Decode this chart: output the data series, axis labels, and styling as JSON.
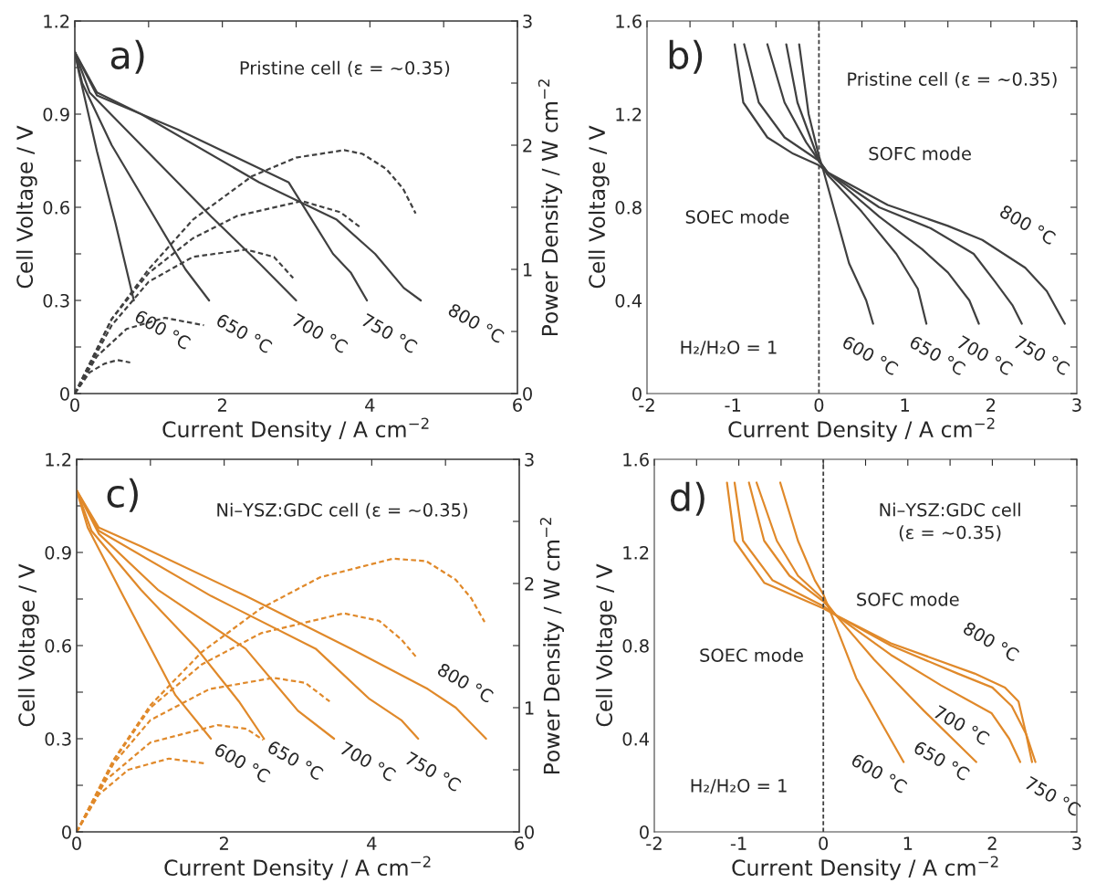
{
  "chart_data": [
    {
      "type": "line",
      "title": "a)",
      "subtitle": "Pristine cell (ε = ~0.35)",
      "xlabel": "Current Density / A cm$^{−2}$",
      "ylabel": "Cell Voltage / V",
      "y2label": "Power Density / W cm$^{−2}$",
      "xlim": [
        0,
        6
      ],
      "xticks": [
        0,
        {
          "value": 1,
          "label": null
        },
        2,
        {
          "value": 3,
          "label": null
        },
        4,
        {
          "value": 5,
          "label": null
        },
        6
      ],
      "ylim": [
        0,
        1.2
      ],
      "yticks": [
        0,
        {
          "value": 0.15,
          "label": null
        },
        0.3,
        {
          "value": 0.45,
          "label": null
        },
        0.6,
        {
          "value": 0.75,
          "label": null
        },
        0.9,
        {
          "value": 1.05,
          "label": null
        },
        1.2
      ],
      "y2lim": [
        0,
        3
      ],
      "y2ticks": [
        0,
        {
          "value": 0.5,
          "label": null
        },
        1,
        {
          "value": 1.5,
          "label": null
        },
        2,
        {
          "value": 2.5,
          "label": null
        },
        3
      ],
      "series": [
        {
          "name": "600 °C",
          "color": "#404040",
          "line_style": "solid",
          "x": [
            0,
            0.05,
            0.3,
            0.55,
            0.8
          ],
          "values": [
            1.1,
            1.04,
            0.78,
            0.55,
            0.3
          ]
        },
        {
          "name": "650 °C",
          "color": "#404040",
          "line_style": "solid",
          "x": [
            0,
            0.1,
            0.5,
            1.0,
            1.5,
            1.82
          ],
          "values": [
            1.1,
            1.0,
            0.8,
            0.6,
            0.4,
            0.3
          ]
        },
        {
          "name": "700 °C",
          "color": "#404040",
          "line_style": "solid",
          "x": [
            0,
            0.2,
            0.9,
            1.85,
            2.5,
            3.0
          ],
          "values": [
            1.1,
            0.97,
            0.8,
            0.57,
            0.42,
            0.3
          ]
        },
        {
          "name": "750 °C",
          "color": "#404040",
          "line_style": "solid",
          "x": [
            0,
            0.3,
            1.4,
            2.9,
            3.5,
            3.74,
            3.96
          ],
          "values": [
            1.1,
            0.96,
            0.85,
            0.68,
            0.45,
            0.39,
            0.3
          ]
        },
        {
          "name": "800 °C",
          "color": "#404040",
          "line_style": "solid",
          "x": [
            0,
            0.3,
            0.9,
            2.5,
            3.55,
            4.07,
            4.46,
            4.69
          ],
          "values": [
            1.1,
            0.97,
            0.9,
            0.68,
            0.56,
            0.45,
            0.34,
            0.3
          ]
        },
        {
          "color": "#404040",
          "line_style": "dashed",
          "axis": "y2",
          "x": [
            0,
            0.2,
            0.4,
            0.58,
            0.75
          ],
          "values": [
            0,
            0.17,
            0.24,
            0.27,
            0.25
          ]
        },
        {
          "color": "#404040",
          "line_style": "dashed",
          "axis": "y2",
          "x": [
            0,
            0.3,
            0.7,
            1.22,
            1.75
          ],
          "values": [
            0,
            0.3,
            0.52,
            0.61,
            0.55
          ]
        },
        {
          "color": "#404040",
          "line_style": "dashed",
          "axis": "y2",
          "x": [
            0,
            0.5,
            1.0,
            1.6,
            2.32,
            2.7,
            2.96
          ],
          "values": [
            0,
            0.55,
            0.9,
            1.1,
            1.16,
            1.1,
            0.93
          ]
        },
        {
          "color": "#404040",
          "line_style": "dashed",
          "axis": "y2",
          "x": [
            0,
            0.5,
            1.0,
            1.6,
            2.2,
            3.08,
            3.6,
            3.89
          ],
          "values": [
            0,
            0.6,
            0.97,
            1.25,
            1.43,
            1.55,
            1.46,
            1.33
          ]
        },
        {
          "color": "#404040",
          "line_style": "dashed",
          "axis": "y2",
          "x": [
            0,
            0.5,
            1.0,
            1.6,
            2.4,
            3.0,
            3.65,
            3.9,
            4.22,
            4.45,
            4.62
          ],
          "values": [
            0,
            0.6,
            1.0,
            1.4,
            1.75,
            1.9,
            1.96,
            1.93,
            1.81,
            1.65,
            1.45
          ]
        }
      ],
      "legend": false
    },
    {
      "type": "line",
      "title": "b)",
      "subtitle": "Pristine cell (ε = ~0.35)",
      "xlabel": "Current Density / A cm$^{−2}$",
      "ylabel": "Cell Voltage / V",
      "xlim": [
        -2,
        3
      ],
      "xticks": [
        -2,
        {
          "value": -1.5,
          "label": null
        },
        -1,
        {
          "value": -0.5,
          "label": null
        },
        0,
        {
          "value": 0.5,
          "label": null
        },
        1,
        {
          "value": 1.5,
          "label": null
        },
        2,
        {
          "value": 2.5,
          "label": null
        },
        3
      ],
      "ylim": [
        0,
        1.6
      ],
      "yticks": [
        0,
        {
          "value": 0.2,
          "label": null
        },
        0.4,
        {
          "value": 0.6,
          "label": null
        },
        0.8,
        {
          "value": 1.0,
          "label": null
        },
        1.2,
        {
          "value": 1.4,
          "label": null
        },
        1.6
      ],
      "ref_lines": [
        {
          "axis": "x",
          "value": 0,
          "color": "#404040",
          "line_style": "dashed"
        }
      ],
      "series": [
        {
          "name": "600 °C",
          "color": "#404040",
          "line_style": "solid",
          "x": [
            -0.23,
            -0.12,
            0,
            0.05,
            0.35,
            0.55,
            0.63
          ],
          "values": [
            1.5,
            1.2,
            1.02,
            0.96,
            0.56,
            0.4,
            0.3
          ]
        },
        {
          "name": "650 °C",
          "color": "#404040",
          "line_style": "solid",
          "x": [
            -0.38,
            -0.25,
            0,
            0.1,
            0.5,
            0.9,
            1.15,
            1.25
          ],
          "values": [
            1.5,
            1.25,
            1.0,
            0.94,
            0.78,
            0.6,
            0.45,
            0.3
          ]
        },
        {
          "name": "700 °C",
          "color": "#404040",
          "line_style": "solid",
          "x": [
            -0.6,
            -0.4,
            -0.15,
            0,
            0.1,
            0.7,
            1.2,
            1.5,
            1.75,
            1.86
          ],
          "values": [
            1.5,
            1.25,
            1.08,
            1.0,
            0.95,
            0.76,
            0.62,
            0.52,
            0.4,
            0.3
          ]
        },
        {
          "name": "750 °C",
          "color": "#404040",
          "line_style": "solid",
          "x": [
            -0.87,
            -0.7,
            -0.4,
            0,
            0.1,
            0.7,
            1.3,
            1.8,
            2.05,
            2.25,
            2.36
          ],
          "values": [
            1.5,
            1.25,
            1.1,
            1.0,
            0.95,
            0.8,
            0.71,
            0.6,
            0.48,
            0.38,
            0.3
          ]
        },
        {
          "name": "800 °C",
          "color": "#404040",
          "line_style": "solid",
          "x": [
            -0.98,
            -0.88,
            -0.6,
            -0.3,
            0,
            0.1,
            0.8,
            1.5,
            1.9,
            2.4,
            2.65,
            2.86
          ],
          "values": [
            1.5,
            1.25,
            1.1,
            1.03,
            0.98,
            0.95,
            0.81,
            0.72,
            0.66,
            0.54,
            0.44,
            0.3
          ]
        }
      ],
      "annotations": [
        "SOFC mode",
        "SOEC mode",
        "H₂/H₂O = 1"
      ]
    },
    {
      "type": "line",
      "title": "c)",
      "subtitle": "Ni–YSZ:GDC cell (ε = ~0.35)",
      "xlabel": "Current Density / A cm$^{−2}$",
      "ylabel": "Cell Voltage / V",
      "y2label": "Power Density / W cm$^{−2}$",
      "xlim": [
        0,
        6
      ],
      "xticks": [
        0,
        {
          "value": 1,
          "label": null
        },
        2,
        {
          "value": 3,
          "label": null
        },
        4,
        {
          "value": 5,
          "label": null
        },
        6
      ],
      "ylim": [
        0,
        1.2
      ],
      "yticks": [
        0,
        {
          "value": 0.15,
          "label": null
        },
        0.3,
        {
          "value": 0.45,
          "label": null
        },
        0.6,
        {
          "value": 0.75,
          "label": null
        },
        0.9,
        {
          "value": 1.05,
          "label": null
        },
        1.2
      ],
      "y2lim": [
        0,
        3
      ],
      "y2ticks": [
        0,
        {
          "value": 0.5,
          "label": null
        },
        1,
        {
          "value": 1.5,
          "label": null
        },
        2,
        {
          "value": 2.5,
          "label": null
        },
        3
      ],
      "series": [
        {
          "name": "600 °C",
          "color": "#e0892a",
          "line_style": "solid",
          "x": [
            0,
            0.15,
            0.63,
            1.34,
            1.82
          ],
          "values": [
            1.1,
            0.98,
            0.76,
            0.44,
            0.3
          ]
        },
        {
          "name": "650 °C",
          "color": "#e0892a",
          "line_style": "solid",
          "x": [
            0,
            0.2,
            0.87,
            1.63,
            2.2,
            2.54
          ],
          "values": [
            1.1,
            0.97,
            0.78,
            0.59,
            0.42,
            0.3
          ]
        },
        {
          "name": "700 °C",
          "color": "#e0892a",
          "line_style": "solid",
          "x": [
            0,
            0.3,
            1.1,
            2.29,
            3.0,
            3.49
          ],
          "values": [
            1.1,
            0.96,
            0.78,
            0.59,
            0.39,
            0.3
          ]
        },
        {
          "name": "750 °C",
          "color": "#e0892a",
          "line_style": "solid",
          "x": [
            0,
            0.3,
            1.82,
            3.24,
            3.96,
            4.4,
            4.63
          ],
          "values": [
            1.1,
            0.97,
            0.76,
            0.59,
            0.43,
            0.36,
            0.3
          ]
        },
        {
          "name": "800 °C",
          "color": "#e0892a",
          "line_style": "solid",
          "x": [
            0,
            0.3,
            0.87,
            2.29,
            3.72,
            4.76,
            5.14,
            5.55
          ],
          "values": [
            1.1,
            0.98,
            0.92,
            0.76,
            0.59,
            0.46,
            0.4,
            0.3
          ]
        },
        {
          "color": "#e0892a",
          "line_style": "dashed",
          "axis": "y2",
          "x": [
            0,
            0.3,
            0.7,
            1.25,
            1.75
          ],
          "values": [
            0,
            0.3,
            0.5,
            0.59,
            0.55
          ]
        },
        {
          "color": "#e0892a",
          "line_style": "dashed",
          "axis": "y2",
          "x": [
            0,
            0.4,
            1.0,
            1.91,
            2.3,
            2.53
          ],
          "values": [
            0,
            0.42,
            0.72,
            0.86,
            0.83,
            0.74
          ]
        },
        {
          "color": "#e0892a",
          "line_style": "dashed",
          "axis": "y2",
          "x": [
            0,
            0.5,
            1.0,
            1.8,
            2.67,
            3.1,
            3.43
          ],
          "values": [
            0,
            0.55,
            0.9,
            1.15,
            1.24,
            1.2,
            1.05
          ]
        },
        {
          "color": "#e0892a",
          "line_style": "dashed",
          "axis": "y2",
          "x": [
            0,
            0.5,
            1.0,
            1.7,
            2.5,
            3.62,
            4.1,
            4.4,
            4.6
          ],
          "values": [
            0,
            0.57,
            1.0,
            1.35,
            1.6,
            1.76,
            1.7,
            1.55,
            1.41
          ]
        },
        {
          "color": "#e0892a",
          "line_style": "dashed",
          "axis": "y2",
          "x": [
            0,
            0.5,
            1.0,
            1.7,
            2.5,
            3.3,
            4.29,
            4.74,
            5.14,
            5.35,
            5.53
          ],
          "values": [
            0,
            0.58,
            1.02,
            1.45,
            1.8,
            2.05,
            2.2,
            2.18,
            2.03,
            1.88,
            1.69
          ]
        }
      ],
      "legend": false
    },
    {
      "type": "line",
      "title": "d)",
      "subtitle": "Ni–YSZ:GDC cell\n(ε = ~0.35)",
      "xlabel": "Current Density / A cm$^{−2}$",
      "ylabel": "Cell Voltage / V",
      "xlim": [
        -2,
        3
      ],
      "xticks": [
        -2,
        {
          "value": -1.5,
          "label": null
        },
        -1,
        {
          "value": -0.5,
          "label": null
        },
        0,
        {
          "value": 0.5,
          "label": null
        },
        1,
        {
          "value": 1.5,
          "label": null
        },
        2,
        {
          "value": 2.5,
          "label": null
        },
        3
      ],
      "ylim": [
        0,
        1.6
      ],
      "yticks": [
        0,
        {
          "value": 0.2,
          "label": null
        },
        0.4,
        {
          "value": 0.6,
          "label": null
        },
        0.8,
        {
          "value": 1.0,
          "label": null
        },
        1.2,
        {
          "value": 1.4,
          "label": null
        },
        1.6
      ],
      "ref_lines": [
        {
          "axis": "x",
          "value": 0,
          "color": "#404040",
          "line_style": "dashed"
        }
      ],
      "series": [
        {
          "name": "600 °C",
          "color": "#e0892a",
          "line_style": "solid",
          "x": [
            -0.51,
            -0.3,
            -0.1,
            0,
            0.1,
            0.39,
            0.7,
            0.95
          ],
          "values": [
            1.5,
            1.25,
            1.08,
            1.02,
            0.93,
            0.66,
            0.46,
            0.3
          ]
        },
        {
          "name": "650 °C",
          "color": "#e0892a",
          "line_style": "solid",
          "x": [
            -0.79,
            -0.55,
            -0.3,
            0,
            0.15,
            0.6,
            1.19,
            1.81
          ],
          "values": [
            1.5,
            1.25,
            1.1,
            1.0,
            0.93,
            0.74,
            0.52,
            0.3
          ]
        },
        {
          "name": "700 °C",
          "color": "#e0892a",
          "line_style": "solid",
          "x": [
            -0.88,
            -0.7,
            -0.4,
            0,
            0.15,
            0.8,
            1.39,
            1.99,
            2.2,
            2.33
          ],
          "values": [
            1.5,
            1.25,
            1.1,
            0.99,
            0.93,
            0.76,
            0.63,
            0.51,
            0.4,
            0.3
          ]
        },
        {
          "name": "750 °C",
          "color": "#e0892a",
          "line_style": "solid",
          "x": [
            -1.05,
            -0.95,
            -0.6,
            0,
            0.15,
            0.8,
            1.59,
            2.0,
            2.23,
            2.4,
            2.51
          ],
          "values": [
            1.5,
            1.25,
            1.08,
            0.97,
            0.93,
            0.8,
            0.68,
            0.62,
            0.54,
            0.42,
            0.3
          ]
        },
        {
          "name": "800 °C",
          "color": "#e0892a",
          "line_style": "solid",
          "x": [
            -1.14,
            -1.05,
            -0.7,
            0,
            0.15,
            0.8,
            1.79,
            2.15,
            2.31,
            2.4,
            2.47
          ],
          "values": [
            1.5,
            1.25,
            1.07,
            0.96,
            0.93,
            0.81,
            0.68,
            0.62,
            0.56,
            0.42,
            0.3
          ]
        }
      ],
      "annotations": [
        "SOFC mode",
        "SOEC mode",
        "H₂/H₂O = 1"
      ]
    }
  ]
}
